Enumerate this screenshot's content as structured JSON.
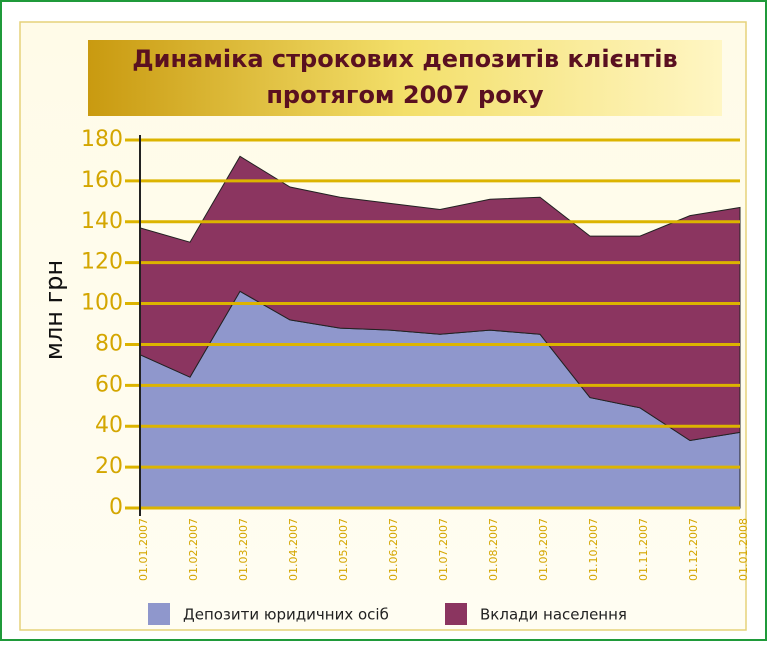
{
  "chart_data": {
    "type": "stacked_area",
    "title": [
      "Динаміка строкових депозитів клієнтів",
      "протягом 2007 року"
    ],
    "y_label": "млн грн",
    "categories": [
      "01.01.2007",
      "01.02.2007",
      "01.03.2007",
      "01.04.2007",
      "01.05.2007",
      "01.06.2007",
      "01.07.2007",
      "01.08.2007",
      "01.09.2007",
      "01.10.2007",
      "01.11.2007",
      "01.12.2007",
      "01.01.2008"
    ],
    "series": [
      {
        "name": "Депозити юридичних осіб",
        "color": "#8f97cc",
        "values": [
          75,
          64,
          106,
          92,
          88,
          87,
          85,
          87,
          85,
          54,
          49,
          33,
          37
        ]
      },
      {
        "name": "Вклади населення",
        "color": "#8b3560",
        "values": [
          62,
          66,
          66,
          65,
          64,
          62,
          61,
          64,
          67,
          79,
          84,
          110,
          110
        ]
      }
    ],
    "ylim": [
      0,
      180
    ],
    "yticks": [
      0,
      20,
      40,
      60,
      80,
      100,
      120,
      140,
      160,
      180
    ],
    "grid": true
  }
}
